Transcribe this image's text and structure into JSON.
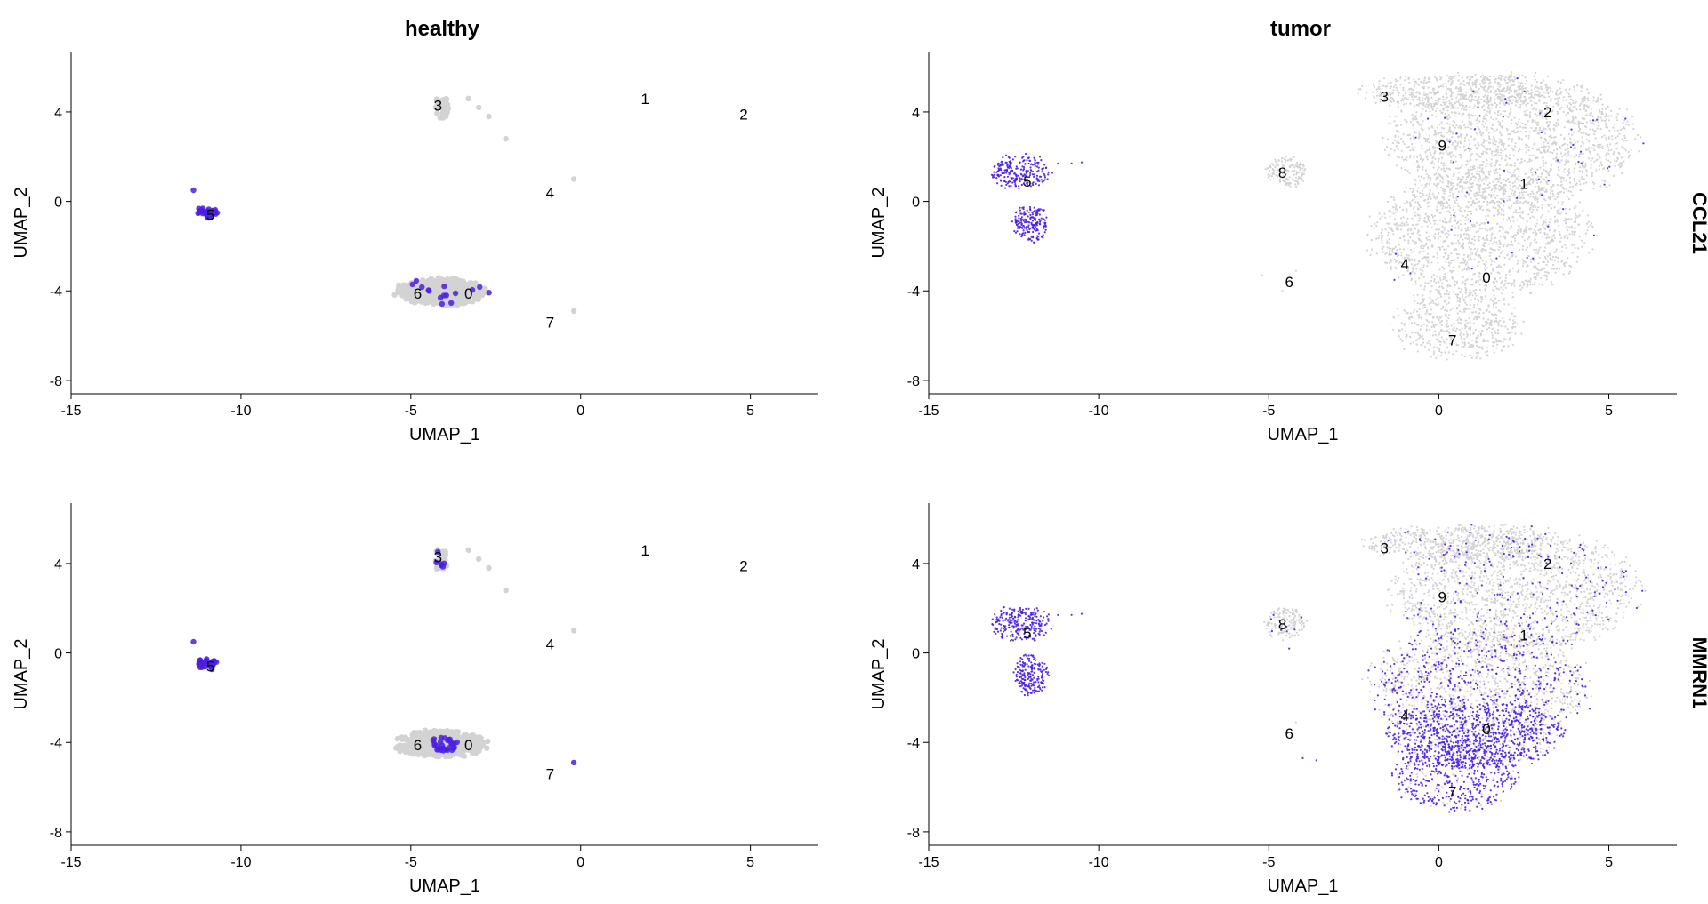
{
  "colors": {
    "background": "#ffffff",
    "low_expression": "#d3d3d3",
    "high_expression": "#4b1fe0",
    "axis": "#000000"
  },
  "column_titles": [
    "healthy",
    "tumor"
  ],
  "row_labels": [
    "CCL21",
    "MMRN1"
  ],
  "chart_data": [
    {
      "type": "scatter",
      "panel": "healthy / CCL21",
      "title": "healthy",
      "xlabel": "UMAP_1",
      "ylabel": "UMAP_2",
      "xlim": [
        -15,
        7
      ],
      "ylim": [
        -8.6,
        6.7
      ],
      "xticks": [
        -15,
        -10,
        -5,
        0,
        5
      ],
      "yticks": [
        -8,
        -4,
        0,
        4
      ],
      "grid": false,
      "point_size": "large",
      "clusters": [
        {
          "label": "0",
          "x": -3.3,
          "y": -4.1
        },
        {
          "label": "1",
          "x": 1.9,
          "y": 4.6
        },
        {
          "label": "2",
          "x": 4.8,
          "y": 3.9
        },
        {
          "label": "3",
          "x": -4.2,
          "y": 4.3
        },
        {
          "label": "4",
          "x": -0.9,
          "y": 0.4
        },
        {
          "label": "5",
          "x": -10.9,
          "y": -0.6
        },
        {
          "label": "6",
          "x": -4.8,
          "y": -4.1
        },
        {
          "label": "7",
          "x": -0.9,
          "y": -5.4
        }
      ],
      "point_groups": [
        {
          "cx": -4.1,
          "cy": -4.05,
          "rx": 1.3,
          "ry": 0.6,
          "n": 450,
          "expr_fraction": 0.02
        },
        {
          "cx": -4.1,
          "cy": 4.2,
          "rx": 0.2,
          "ry": 0.55,
          "n": 40,
          "expr_fraction": 0.0
        },
        {
          "cx": -11.0,
          "cy": -0.5,
          "rx": 0.3,
          "ry": 0.25,
          "n": 35,
          "expr_fraction": 1.0
        }
      ],
      "stray_points": [
        {
          "x": -3.0,
          "y": 4.2,
          "expressed": false
        },
        {
          "x": -2.7,
          "y": 3.8,
          "expressed": false
        },
        {
          "x": -2.2,
          "y": 2.8,
          "expressed": false
        },
        {
          "x": -3.3,
          "y": 4.6,
          "expressed": false
        },
        {
          "x": -0.2,
          "y": 1.0,
          "expressed": false
        },
        {
          "x": -0.2,
          "y": -4.9,
          "expressed": false
        },
        {
          "x": -11.4,
          "y": 0.5,
          "expressed": true
        }
      ]
    },
    {
      "type": "scatter",
      "panel": "tumor / CCL21",
      "title": "tumor",
      "xlabel": "UMAP_1",
      "ylabel": "UMAP_2",
      "row_label": "CCL21",
      "xlim": [
        -15,
        7
      ],
      "ylim": [
        -8.6,
        6.7
      ],
      "xticks": [
        -15,
        -10,
        -5,
        0,
        5
      ],
      "yticks": [
        -8,
        -4,
        0,
        4
      ],
      "grid": false,
      "point_size": "small",
      "clusters": [
        {
          "label": "0",
          "x": 1.4,
          "y": -3.4
        },
        {
          "label": "1",
          "x": 2.5,
          "y": 0.8
        },
        {
          "label": "2",
          "x": 3.2,
          "y": 4.0
        },
        {
          "label": "3",
          "x": -1.6,
          "y": 4.7
        },
        {
          "label": "4",
          "x": -1.0,
          "y": -2.8
        },
        {
          "label": "5",
          "x": -12.1,
          "y": 0.9
        },
        {
          "label": "6",
          "x": -4.4,
          "y": -3.6
        },
        {
          "label": "7",
          "x": 0.4,
          "y": -6.2
        },
        {
          "label": "8",
          "x": -4.6,
          "y": 1.3
        },
        {
          "label": "9",
          "x": 0.1,
          "y": 2.5
        }
      ],
      "point_groups": [
        {
          "cx": 2.2,
          "cy": 2.8,
          "rx": 3.6,
          "ry": 2.8,
          "n": 1700,
          "expr_fraction": 0.015
        },
        {
          "cx": 0.5,
          "cy": 4.9,
          "rx": 2.8,
          "ry": 0.8,
          "n": 500,
          "expr_fraction": 0.0
        },
        {
          "cx": 1.2,
          "cy": -1.5,
          "rx": 3.2,
          "ry": 2.8,
          "n": 1500,
          "expr_fraction": 0.01
        },
        {
          "cx": 0.5,
          "cy": -5.5,
          "rx": 1.9,
          "ry": 1.6,
          "n": 500,
          "expr_fraction": 0.0
        },
        {
          "cx": -4.5,
          "cy": 1.3,
          "rx": 0.6,
          "ry": 0.7,
          "n": 140,
          "expr_fraction": 0.0
        },
        {
          "cx": -12.3,
          "cy": 1.3,
          "rx": 0.9,
          "ry": 0.8,
          "n": 230,
          "expr_fraction": 1.0
        },
        {
          "cx": -12.0,
          "cy": -1.0,
          "rx": 0.5,
          "ry": 0.9,
          "n": 190,
          "expr_fraction": 1.0
        }
      ],
      "stray_points": [
        {
          "x": -10.8,
          "y": 1.7,
          "expressed": true
        },
        {
          "x": -10.5,
          "y": 1.75,
          "expressed": true
        },
        {
          "x": -11.2,
          "y": 1.7,
          "expressed": true
        },
        {
          "x": -4.2,
          "y": -3.1,
          "expressed": false
        },
        {
          "x": -4.6,
          "y": -4.0,
          "expressed": false
        },
        {
          "x": -5.2,
          "y": -3.3,
          "expressed": false
        }
      ]
    },
    {
      "type": "scatter",
      "panel": "healthy / MMRN1",
      "title": "",
      "xlabel": "UMAP_1",
      "ylabel": "UMAP_2",
      "xlim": [
        -15,
        7
      ],
      "ylim": [
        -8.6,
        6.7
      ],
      "xticks": [
        -15,
        -10,
        -5,
        0,
        5
      ],
      "yticks": [
        -8,
        -4,
        0,
        4
      ],
      "grid": false,
      "point_size": "large",
      "clusters": [
        {
          "label": "0",
          "x": -3.3,
          "y": -4.1
        },
        {
          "label": "1",
          "x": 1.9,
          "y": 4.6
        },
        {
          "label": "2",
          "x": 4.8,
          "y": 3.9
        },
        {
          "label": "3",
          "x": -4.2,
          "y": 4.3
        },
        {
          "label": "4",
          "x": -0.9,
          "y": 0.4
        },
        {
          "label": "5",
          "x": -10.9,
          "y": -0.6
        },
        {
          "label": "6",
          "x": -4.8,
          "y": -4.1
        },
        {
          "label": "7",
          "x": -0.9,
          "y": -5.4
        }
      ],
      "point_groups": [
        {
          "cx": -4.1,
          "cy": -4.05,
          "rx": 1.3,
          "ry": 0.6,
          "n": 450,
          "expr_fraction": 0.0
        },
        {
          "cx": -4.0,
          "cy": -4.1,
          "rx": 0.45,
          "ry": 0.35,
          "n": 28,
          "expr_fraction": 1.0
        },
        {
          "cx": -4.1,
          "cy": 4.2,
          "rx": 0.2,
          "ry": 0.55,
          "n": 40,
          "expr_fraction": 0.12
        },
        {
          "cx": -11.0,
          "cy": -0.5,
          "rx": 0.3,
          "ry": 0.25,
          "n": 35,
          "expr_fraction": 1.0
        }
      ],
      "stray_points": [
        {
          "x": -3.0,
          "y": 4.2,
          "expressed": false
        },
        {
          "x": -2.7,
          "y": 3.8,
          "expressed": false
        },
        {
          "x": -2.2,
          "y": 2.8,
          "expressed": false
        },
        {
          "x": -3.3,
          "y": 4.6,
          "expressed": false
        },
        {
          "x": -0.2,
          "y": 1.0,
          "expressed": false
        },
        {
          "x": -0.2,
          "y": -4.9,
          "expressed": true
        },
        {
          "x": -11.4,
          "y": 0.5,
          "expressed": true
        }
      ]
    },
    {
      "type": "scatter",
      "panel": "tumor / MMRN1",
      "title": "",
      "xlabel": "UMAP_1",
      "ylabel": "UMAP_2",
      "row_label": "MMRN1",
      "xlim": [
        -15,
        7
      ],
      "ylim": [
        -8.6,
        6.7
      ],
      "xticks": [
        -15,
        -10,
        -5,
        0,
        5
      ],
      "yticks": [
        -8,
        -4,
        0,
        4
      ],
      "grid": false,
      "point_size": "small",
      "clusters": [
        {
          "label": "0",
          "x": 1.4,
          "y": -3.4
        },
        {
          "label": "1",
          "x": 2.5,
          "y": 0.8
        },
        {
          "label": "2",
          "x": 3.2,
          "y": 4.0
        },
        {
          "label": "3",
          "x": -1.6,
          "y": 4.7
        },
        {
          "label": "4",
          "x": -1.0,
          "y": -2.8
        },
        {
          "label": "5",
          "x": -12.1,
          "y": 0.9
        },
        {
          "label": "6",
          "x": -4.4,
          "y": -3.6
        },
        {
          "label": "7",
          "x": 0.4,
          "y": -6.2
        },
        {
          "label": "8",
          "x": -4.6,
          "y": 1.3
        },
        {
          "label": "9",
          "x": 0.1,
          "y": 2.5
        }
      ],
      "point_groups": [
        {
          "cx": 2.2,
          "cy": 2.8,
          "rx": 3.6,
          "ry": 2.8,
          "n": 1700,
          "expr_fraction": 0.1
        },
        {
          "cx": 0.5,
          "cy": 4.9,
          "rx": 2.8,
          "ry": 0.8,
          "n": 500,
          "expr_fraction": 0.05
        },
        {
          "cx": 1.2,
          "cy": -1.5,
          "rx": 3.2,
          "ry": 2.8,
          "n": 1500,
          "expr_fraction": 0.35
        },
        {
          "cx": 1.0,
          "cy": -3.6,
          "rx": 2.6,
          "ry": 1.6,
          "n": 900,
          "expr_fraction": 0.85
        },
        {
          "cx": 0.5,
          "cy": -5.5,
          "rx": 1.9,
          "ry": 1.6,
          "n": 500,
          "expr_fraction": 0.8
        },
        {
          "cx": -4.5,
          "cy": 1.3,
          "rx": 0.6,
          "ry": 0.7,
          "n": 140,
          "expr_fraction": 0.05
        },
        {
          "cx": -12.3,
          "cy": 1.3,
          "rx": 0.9,
          "ry": 0.8,
          "n": 230,
          "expr_fraction": 1.0
        },
        {
          "cx": -12.0,
          "cy": -1.0,
          "rx": 0.5,
          "ry": 0.9,
          "n": 190,
          "expr_fraction": 1.0
        }
      ],
      "stray_points": [
        {
          "x": -10.8,
          "y": 1.7,
          "expressed": true
        },
        {
          "x": -10.5,
          "y": 1.75,
          "expressed": true
        },
        {
          "x": -11.2,
          "y": 1.7,
          "expressed": true
        },
        {
          "x": -4.2,
          "y": -3.1,
          "expressed": false
        },
        {
          "x": -4.0,
          "y": -4.7,
          "expressed": true
        },
        {
          "x": -3.6,
          "y": -4.8,
          "expressed": true
        },
        {
          "x": -4.4,
          "y": 0.2,
          "expressed": true
        }
      ]
    }
  ]
}
